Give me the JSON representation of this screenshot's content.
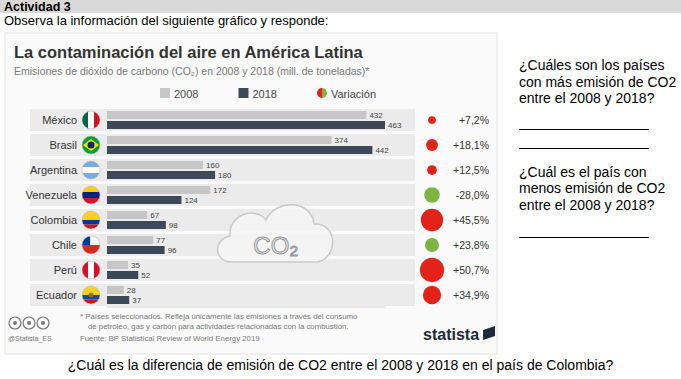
{
  "header": {
    "title": "Actividad 3",
    "instruction": "Observa la información del siguiente gráfico y responde:"
  },
  "chart_data": {
    "type": "bar",
    "orientation": "horizontal",
    "title": "La contaminación del aire en América Latina",
    "subtitle": "Emisiones de dióxido de carbono (CO₂) en 2008 y 2018 (mill. de toneladas)*",
    "categories": [
      "México",
      "Brasil",
      "Argentina",
      "Venezuela",
      "Colombia",
      "Chile",
      "Perú",
      "Ecuador"
    ],
    "series": [
      {
        "name": "2008",
        "color": "#c6c6c6",
        "values": [
          432,
          374,
          160,
          172,
          67,
          77,
          35,
          28
        ]
      },
      {
        "name": "2018",
        "color": "#3d4959",
        "values": [
          463,
          442,
          180,
          124,
          98,
          96,
          52,
          37
        ]
      }
    ],
    "variation": {
      "name": "Variación",
      "values": [
        7.2,
        18.1,
        12.5,
        -28.0,
        45.5,
        23.8,
        50.7,
        34.9
      ],
      "value_labels": [
        "+7,2%",
        "+18,1%",
        "+12,5%",
        "-28,0%",
        "+45,5%",
        "+23,8%",
        "+50,7%",
        "+34,9%"
      ],
      "colors": [
        "#e2231a",
        "#e2231a",
        "#e2231a",
        "#7cb342",
        "#e2231a",
        "#7cb342",
        "#e2231a",
        "#e2231a"
      ]
    },
    "xlim": [
      0,
      463
    ],
    "tick_labels": false,
    "grid": false,
    "data_labels": true,
    "legend": "top",
    "annotation": "CO₂",
    "footnote": "* Países seleccionados. Refleja únicamente las emisiones a través del consumo de petróleo, gas y carbón para actividades relacionadas con la combustión.",
    "source": "Fuente: BP Statistical Review of World Energy 2019",
    "credit": "@Statista_ES",
    "brand": "statista"
  },
  "questions": [
    "¿Cuáles son los países con más emisión de CO2 entre el 2008 y 2018?",
    "¿Cuál es el país con menos emisión de CO2 entre el 2008 y 2018?",
    "¿Cuál es la diferencia de emisión de CO2 entre el 2008 y 2018 en el país de Colombia?"
  ]
}
